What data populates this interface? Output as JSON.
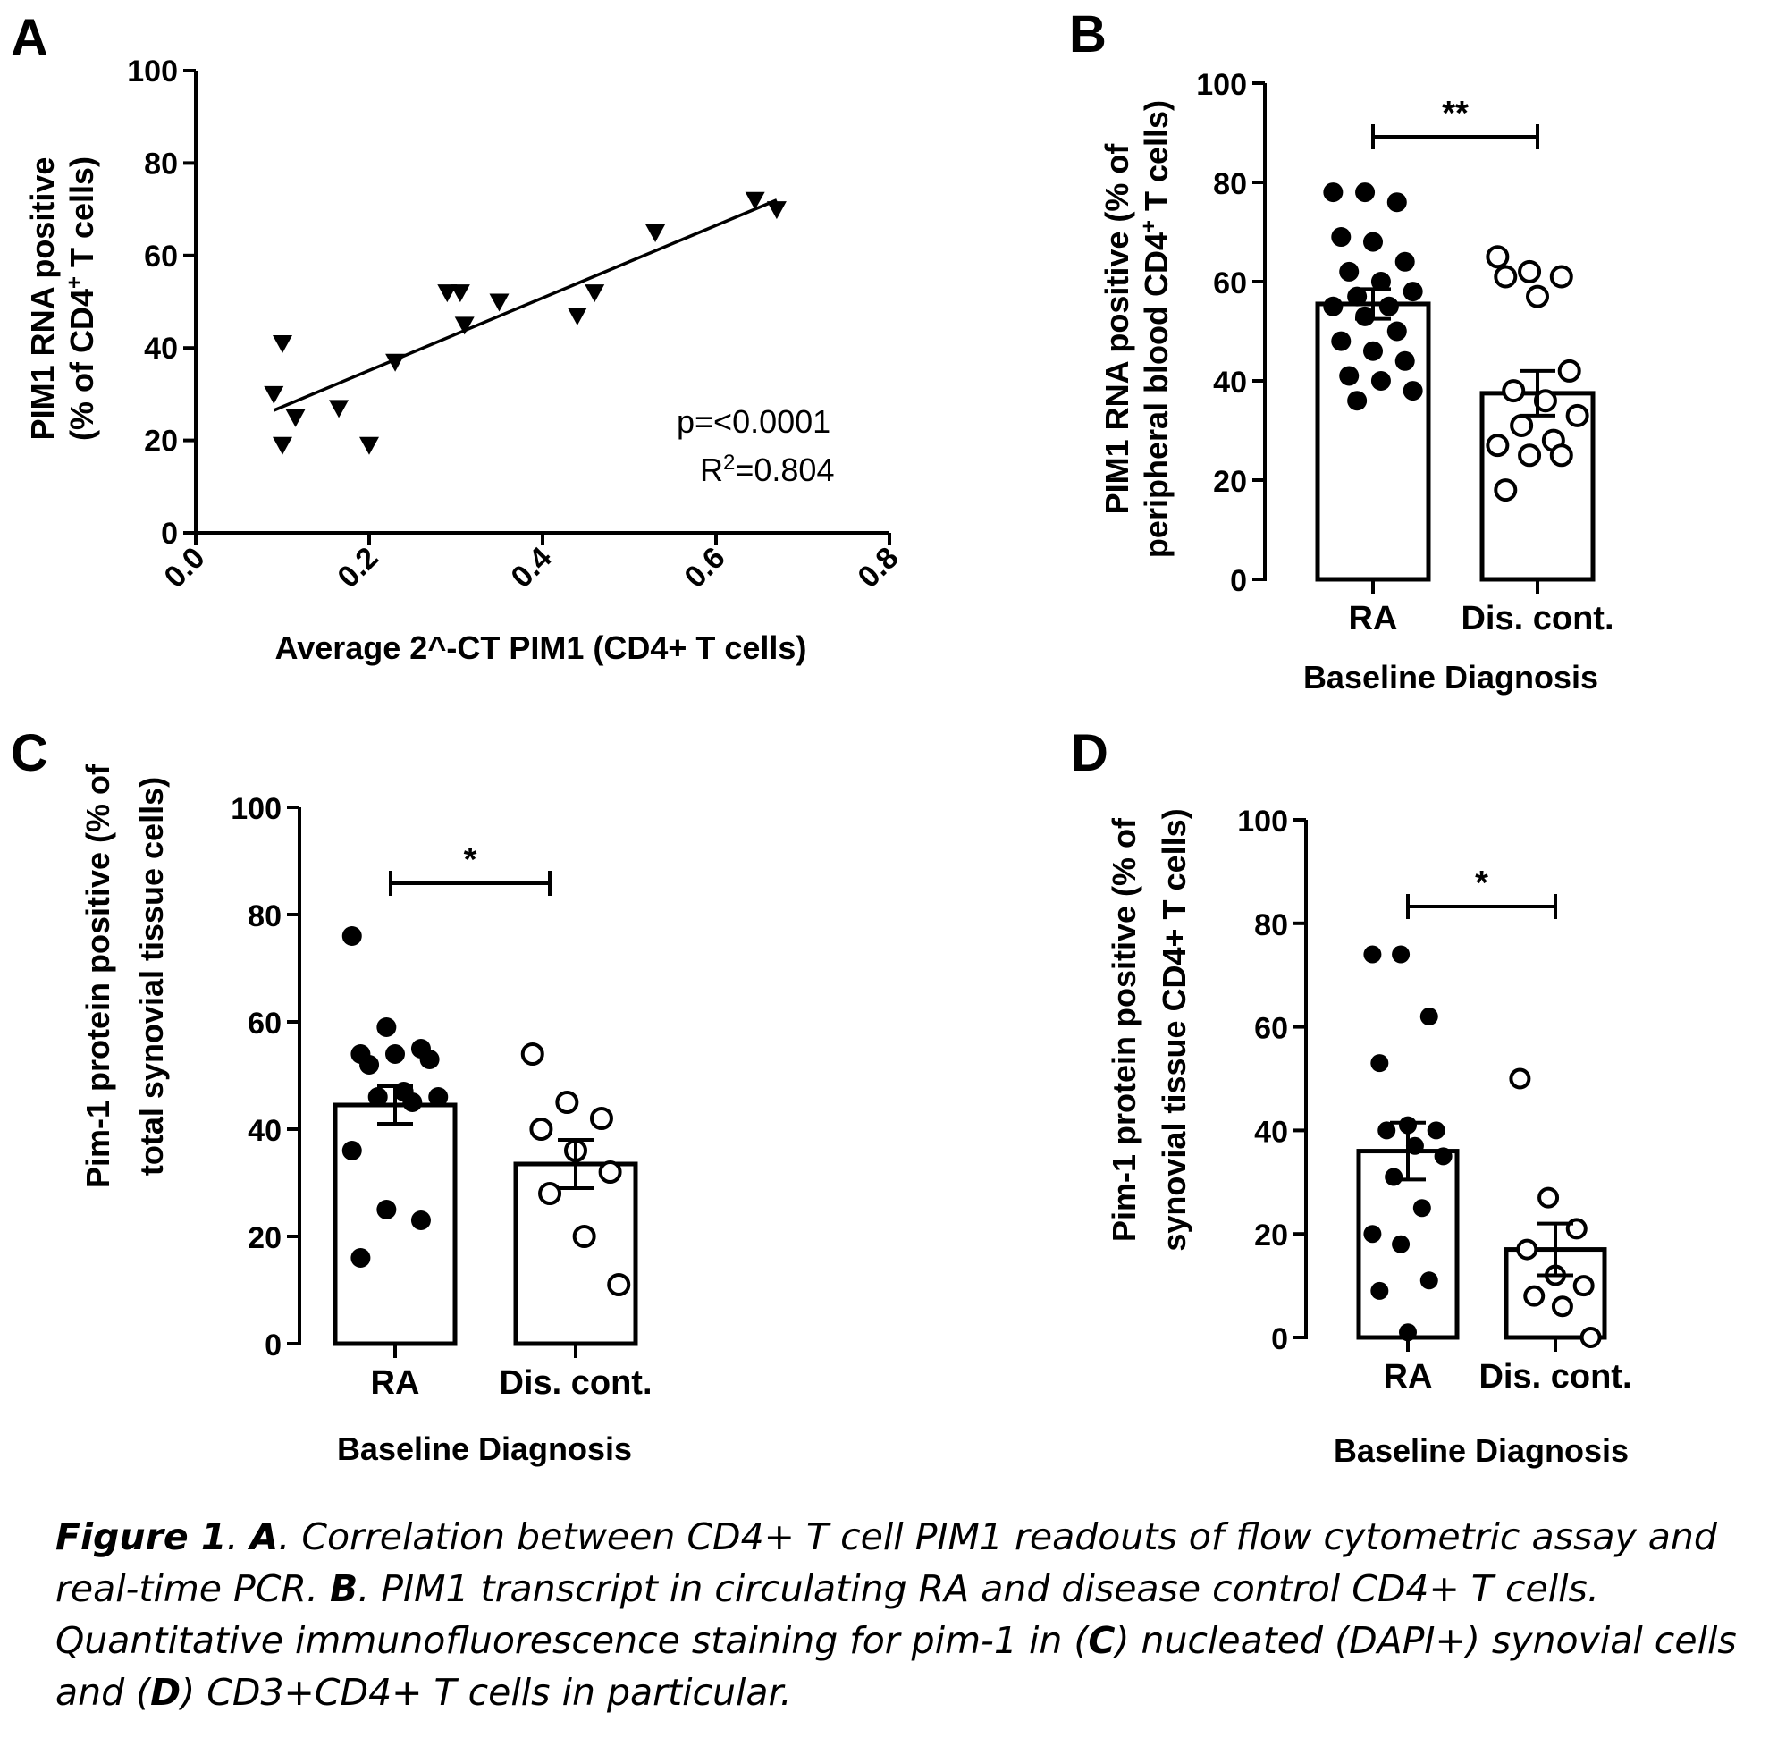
{
  "caption": {
    "fig_label": "Figure 1",
    "s1": ". ",
    "a_label": "A",
    "a_text": ". Correlation between CD4+ T cell PIM1 readouts of flow cytometric assay and real-time PCR. ",
    "b_label": "B",
    "b_text": ". PIM1 transcript in circulating RA and disease control CD4+  T cells. Quantitative immunofluorescence staining for pim-1 in (",
    "c_label": "C",
    "c_text": ") nucleated (DAPI+) synovial cells and (",
    "d_label": "D",
    "d_text": ") CD3+CD4+ T cells in particular."
  },
  "chart_data": [
    {
      "panel": "A",
      "type": "scatter",
      "xlabel": "Average 2^-CT PIM1 (CD4+ T cells)",
      "ylabel_line1": "PIM1 RNA positive",
      "ylabel_line2_pre": "(% of CD4",
      "ylabel_line2_sup": "+",
      "ylabel_line2_post": " T cells)",
      "xlim": [
        0,
        0.8
      ],
      "ylim": [
        0,
        100
      ],
      "xticks": [
        "0.0",
        "0.2",
        "0.4",
        "0.6",
        "0.8"
      ],
      "yticks": [
        "0",
        "20",
        "40",
        "60",
        "80",
        "100"
      ],
      "marker": "triangle-down",
      "points": [
        [
          0.09,
          30
        ],
        [
          0.1,
          41
        ],
        [
          0.1,
          19
        ],
        [
          0.115,
          25
        ],
        [
          0.165,
          27
        ],
        [
          0.2,
          19
        ],
        [
          0.23,
          37
        ],
        [
          0.29,
          52
        ],
        [
          0.305,
          52
        ],
        [
          0.31,
          45
        ],
        [
          0.35,
          50
        ],
        [
          0.44,
          47
        ],
        [
          0.46,
          52
        ],
        [
          0.53,
          65
        ],
        [
          0.645,
          72
        ],
        [
          0.67,
          70
        ]
      ],
      "fit_line": [
        [
          0.09,
          26.5
        ],
        [
          0.67,
          72
        ]
      ],
      "p_text": "p=<0.0001",
      "r2_pre": "R",
      "r2_sup": "2",
      "r2_post": "=0.804"
    },
    {
      "panel": "B",
      "type": "bar",
      "categories": [
        "RA",
        "Dis. cont."
      ],
      "means": [
        55.5,
        37.5
      ],
      "sem": [
        3,
        4.5
      ],
      "ylim": [
        0,
        100
      ],
      "yticks": [
        "0",
        "20",
        "40",
        "60",
        "80",
        "100"
      ],
      "ylabel_line1": "PIM1 RNA positive (% of",
      "ylabel_line2_pre": "peripheral blood CD4",
      "ylabel_line2_sup": "+",
      "ylabel_line2_post": " T cells)",
      "xlabel": "Baseline Diagnosis",
      "significance": "**",
      "points": [
        [
          78,
          78,
          76,
          69,
          68,
          64,
          62,
          60,
          58,
          57,
          55,
          55,
          53,
          50,
          48,
          46,
          44,
          41,
          40,
          38,
          36
        ],
        [
          65,
          62,
          61,
          61,
          57,
          42,
          38,
          36,
          33,
          31,
          28,
          27,
          25,
          25,
          18
        ]
      ]
    },
    {
      "panel": "C",
      "type": "bar",
      "categories": [
        "RA",
        "Dis. cont."
      ],
      "means": [
        44.5,
        33.5
      ],
      "sem": [
        3.5,
        4.5
      ],
      "ylim": [
        0,
        100
      ],
      "yticks": [
        "0",
        "20",
        "40",
        "60",
        "80",
        "100"
      ],
      "ylabel_line1": "Pim-1 protein positive (% of",
      "ylabel_line2": "total synovial tissue cells)",
      "xlabel": "Baseline Diagnosis",
      "significance": "*",
      "points": [
        [
          76,
          59,
          55,
          54,
          54,
          53,
          52,
          47,
          46,
          46,
          45,
          36,
          25,
          23,
          16
        ],
        [
          54,
          45,
          42,
          40,
          36,
          32,
          28,
          20,
          11
        ]
      ]
    },
    {
      "panel": "D",
      "type": "bar",
      "categories": [
        "RA",
        "Dis. cont."
      ],
      "means": [
        36,
        17
      ],
      "sem": [
        5.5,
        5
      ],
      "ylim": [
        0,
        100
      ],
      "yticks": [
        "0",
        "20",
        "40",
        "60",
        "80",
        "100"
      ],
      "ylabel_line1": "Pim-1 protein positive (% of",
      "ylabel_line2": "synovial tissue CD4+ T cells)",
      "xlabel": "Baseline Diagnosis",
      "significance": "*",
      "points": [
        [
          74,
          74,
          62,
          53,
          41,
          40,
          40,
          37,
          35,
          31,
          25,
          20,
          18,
          11,
          9,
          1
        ],
        [
          50,
          27,
          21,
          17,
          12,
          10,
          8,
          6,
          0
        ]
      ]
    }
  ]
}
